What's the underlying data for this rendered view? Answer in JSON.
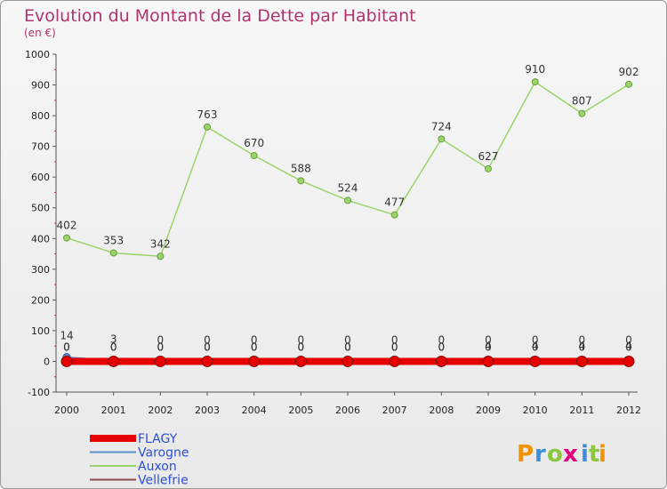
{
  "chart_data": {
    "type": "line",
    "title": "Evolution du Montant de la Dette par Habitant",
    "subtitle": "(en €)",
    "xlabel": "",
    "ylabel": "",
    "ylim": [
      -100,
      1000
    ],
    "yticks": [
      "-100",
      "0",
      "100",
      "200",
      "300",
      "400",
      "500",
      "600",
      "700",
      "800",
      "900",
      "1000"
    ],
    "categories": [
      "2000",
      "2001",
      "2002",
      "2003",
      "2004",
      "2005",
      "2006",
      "2007",
      "2008",
      "2009",
      "2010",
      "2011",
      "2012"
    ],
    "grid": false,
    "legend": "bottom-left",
    "series": [
      {
        "name": "FLAGY",
        "color": "#e60000",
        "values": [
          0,
          0,
          0,
          0,
          0,
          0,
          0,
          0,
          0,
          0,
          0,
          0,
          0
        ],
        "labels": [
          "0",
          "0",
          "0",
          "0",
          "0",
          "0",
          "0",
          "0",
          "0",
          "0",
          "0",
          "0",
          "0"
        ]
      },
      {
        "name": "Varogne",
        "color": "#5b8fc9",
        "values": [
          14,
          3,
          0,
          0,
          0,
          0,
          0,
          0,
          0,
          0,
          0,
          0,
          0
        ],
        "labels": [
          "14",
          "3",
          "0",
          "0",
          "0",
          "0",
          "0",
          "0",
          "0",
          "0",
          "0",
          "0",
          "0"
        ]
      },
      {
        "name": "Auxon",
        "color": "#9ad46a",
        "values": [
          402,
          353,
          342,
          763,
          670,
          588,
          524,
          477,
          724,
          627,
          910,
          807,
          902
        ],
        "labels": [
          "402",
          "353",
          "342",
          "763",
          "670",
          "588",
          "524",
          "477",
          "724",
          "627",
          "910",
          "807",
          "902"
        ]
      },
      {
        "name": "Vellefrie",
        "color": "#8a4a4a",
        "values": [
          0,
          0,
          0,
          0,
          0,
          0,
          0,
          0,
          0,
          4,
          4,
          4,
          4
        ],
        "labels": [
          "0",
          "0",
          "0",
          "0",
          "0",
          "0",
          "0",
          "0",
          "0",
          "4",
          "4",
          "4",
          "4"
        ]
      }
    ]
  },
  "branding": {
    "logo_letters": [
      "P",
      "r",
      "o",
      "x",
      "i",
      "t",
      "i"
    ],
    "logo_colors": [
      "#f39200",
      "#3a8fd8",
      "#8cc63e",
      "#e6007e",
      "#3a8fd8",
      "#8cc63e",
      "#f39200"
    ]
  }
}
